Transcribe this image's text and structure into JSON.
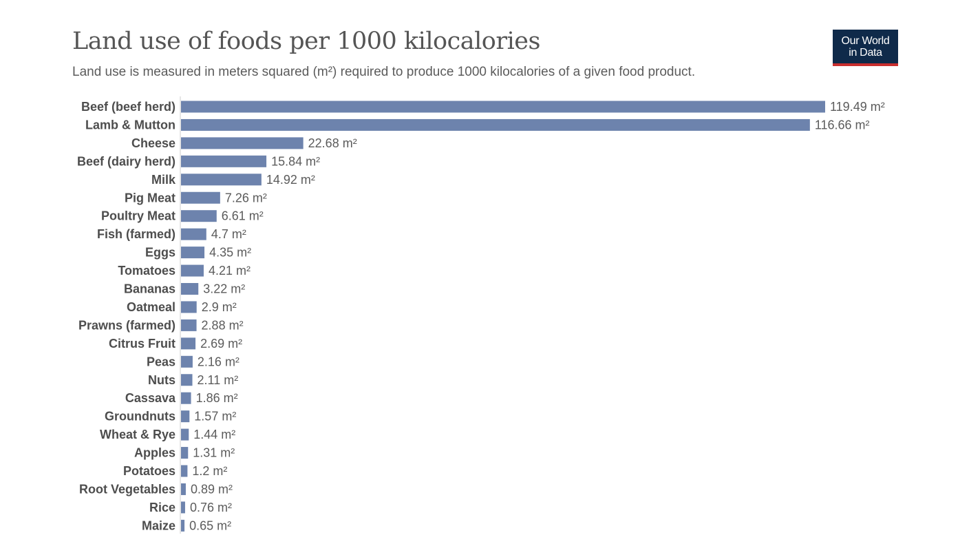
{
  "header": {
    "title": "Land use of foods per 1000 kilocalories",
    "subtitle": "Land use is measured in meters squared (m²) required to produce 1000 kilocalories of a given food product.",
    "logo_line1": "Our World",
    "logo_line2": "in Data"
  },
  "colors": {
    "bar": "#6d83ad",
    "axis": "#cccccc",
    "logo_bg": "#0f2a4a",
    "logo_accent": "#c92f2f"
  },
  "chart_data": {
    "type": "bar",
    "orientation": "horizontal",
    "title": "Land use of foods per 1000 kilocalories",
    "unit": "m²",
    "categories": [
      "Beef (beef herd)",
      "Lamb & Mutton",
      "Cheese",
      "Beef (dairy herd)",
      "Milk",
      "Pig Meat",
      "Poultry Meat",
      "Fish (farmed)",
      "Eggs",
      "Tomatoes",
      "Bananas",
      "Oatmeal",
      "Prawns (farmed)",
      "Citrus Fruit",
      "Peas",
      "Nuts",
      "Cassava",
      "Groundnuts",
      "Wheat & Rye",
      "Apples",
      "Potatoes",
      "Root Vegetables",
      "Rice",
      "Maize"
    ],
    "values": [
      119.49,
      116.66,
      22.68,
      15.84,
      14.92,
      7.26,
      6.61,
      4.7,
      4.35,
      4.21,
      3.22,
      2.9,
      2.88,
      2.69,
      2.16,
      2.11,
      1.86,
      1.57,
      1.44,
      1.31,
      1.2,
      0.89,
      0.76,
      0.65
    ],
    "value_labels": [
      "119.49 m²",
      "116.66 m²",
      "22.68 m²",
      "15.84 m²",
      "14.92 m²",
      "7.26 m²",
      "6.61 m²",
      "4.7 m²",
      "4.35 m²",
      "4.21 m²",
      "3.22 m²",
      "2.9 m²",
      "2.88 m²",
      "2.69 m²",
      "2.16 m²",
      "2.11 m²",
      "1.86 m²",
      "1.57 m²",
      "1.44 m²",
      "1.31 m²",
      "1.2 m²",
      "0.89 m²",
      "0.76 m²",
      "0.65 m²"
    ],
    "xlim": [
      0,
      119.49
    ],
    "grid": false,
    "legend": "none"
  }
}
